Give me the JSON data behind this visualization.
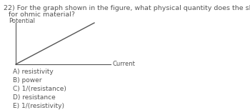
{
  "question_number": "22)",
  "question_line1": "For the graph shown in the figure, what physical quantity does the slope of the graph represent",
  "question_line2": "for ohmic material?",
  "y_axis_label": "Potential",
  "x_axis_label": "Current",
  "choices": [
    "A) resistivity",
    "B) power",
    "C) 1/(resistance)",
    "D) resistance",
    "E) 1/(resistivity)"
  ],
  "text_color": "#555555",
  "background_color": "#ffffff",
  "font_size_question": 6.8,
  "font_size_choices": 6.5,
  "font_size_axis_label": 6.0
}
